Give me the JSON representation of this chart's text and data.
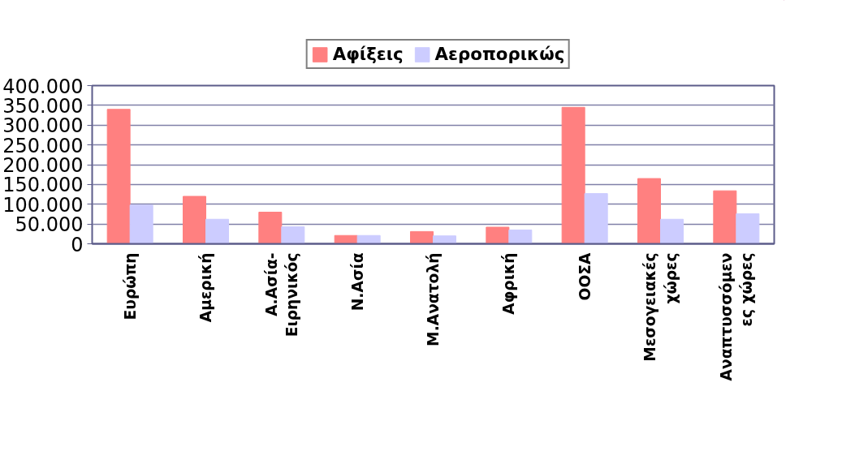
{
  "chart_data": {
    "type": "bar",
    "categories": [
      "Ευρώπη",
      "Αμερική",
      "Α.Ασία-\nΕιρηνικός",
      "Ν.Ασία",
      "Μ.Ανατολή",
      "Αφρική",
      "ΟΟΣΑ",
      "Μεσογειακές\nχώρες",
      "Αναπτυσσόμεν\nες χώρες"
    ],
    "series": [
      {
        "name": "Αφίξεις",
        "color": "#ff8080",
        "values": [
          340000,
          120000,
          80000,
          21000,
          31000,
          42000,
          345000,
          165000,
          134000
        ]
      },
      {
        "name": "Αεροπορικώς",
        "color": "#ccccff",
        "values": [
          98000,
          62000,
          43000,
          21000,
          20000,
          35000,
          127000,
          62000,
          76000
        ]
      }
    ],
    "ylim": [
      0,
      400000
    ],
    "yticks": [
      {
        "value": 0,
        "label": "0"
      },
      {
        "value": 50000,
        "label": "50.000"
      },
      {
        "value": 100000,
        "label": "100.000"
      },
      {
        "value": 150000,
        "label": "150.000"
      },
      {
        "value": 200000,
        "label": "200.000"
      },
      {
        "value": 250000,
        "label": "250.000"
      },
      {
        "value": 300000,
        "label": "300.000"
      },
      {
        "value": 350000,
        "label": "350.000"
      },
      {
        "value": 400000,
        "label": "400.000"
      }
    ],
    "grid": "y",
    "legend": "top"
  }
}
